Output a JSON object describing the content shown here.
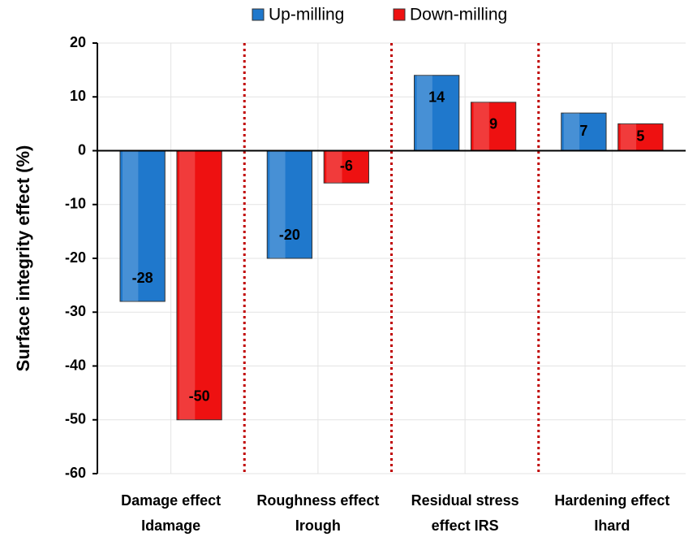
{
  "chart_data": {
    "type": "bar",
    "y_label": "Surface integrity effect (%)",
    "categories": [
      [
        "Damage effect",
        "Idamage"
      ],
      [
        "Roughness effect",
        "Irough"
      ],
      [
        "Residual stress",
        "effect IRS"
      ],
      [
        "Hardening effect",
        "Ihard"
      ]
    ],
    "series": [
      {
        "name": "Up-milling",
        "color": "#1f78cc",
        "values": [
          -28,
          -20,
          14,
          7
        ]
      },
      {
        "name": "Down-milling",
        "color": "#ee1111",
        "values": [
          -50,
          -6,
          9,
          5
        ]
      }
    ],
    "ylim": [
      -60,
      20
    ],
    "yticks": [
      -60,
      -50,
      -40,
      -30,
      -20,
      -10,
      0,
      10,
      20
    ],
    "grid": true,
    "legend": "top"
  }
}
